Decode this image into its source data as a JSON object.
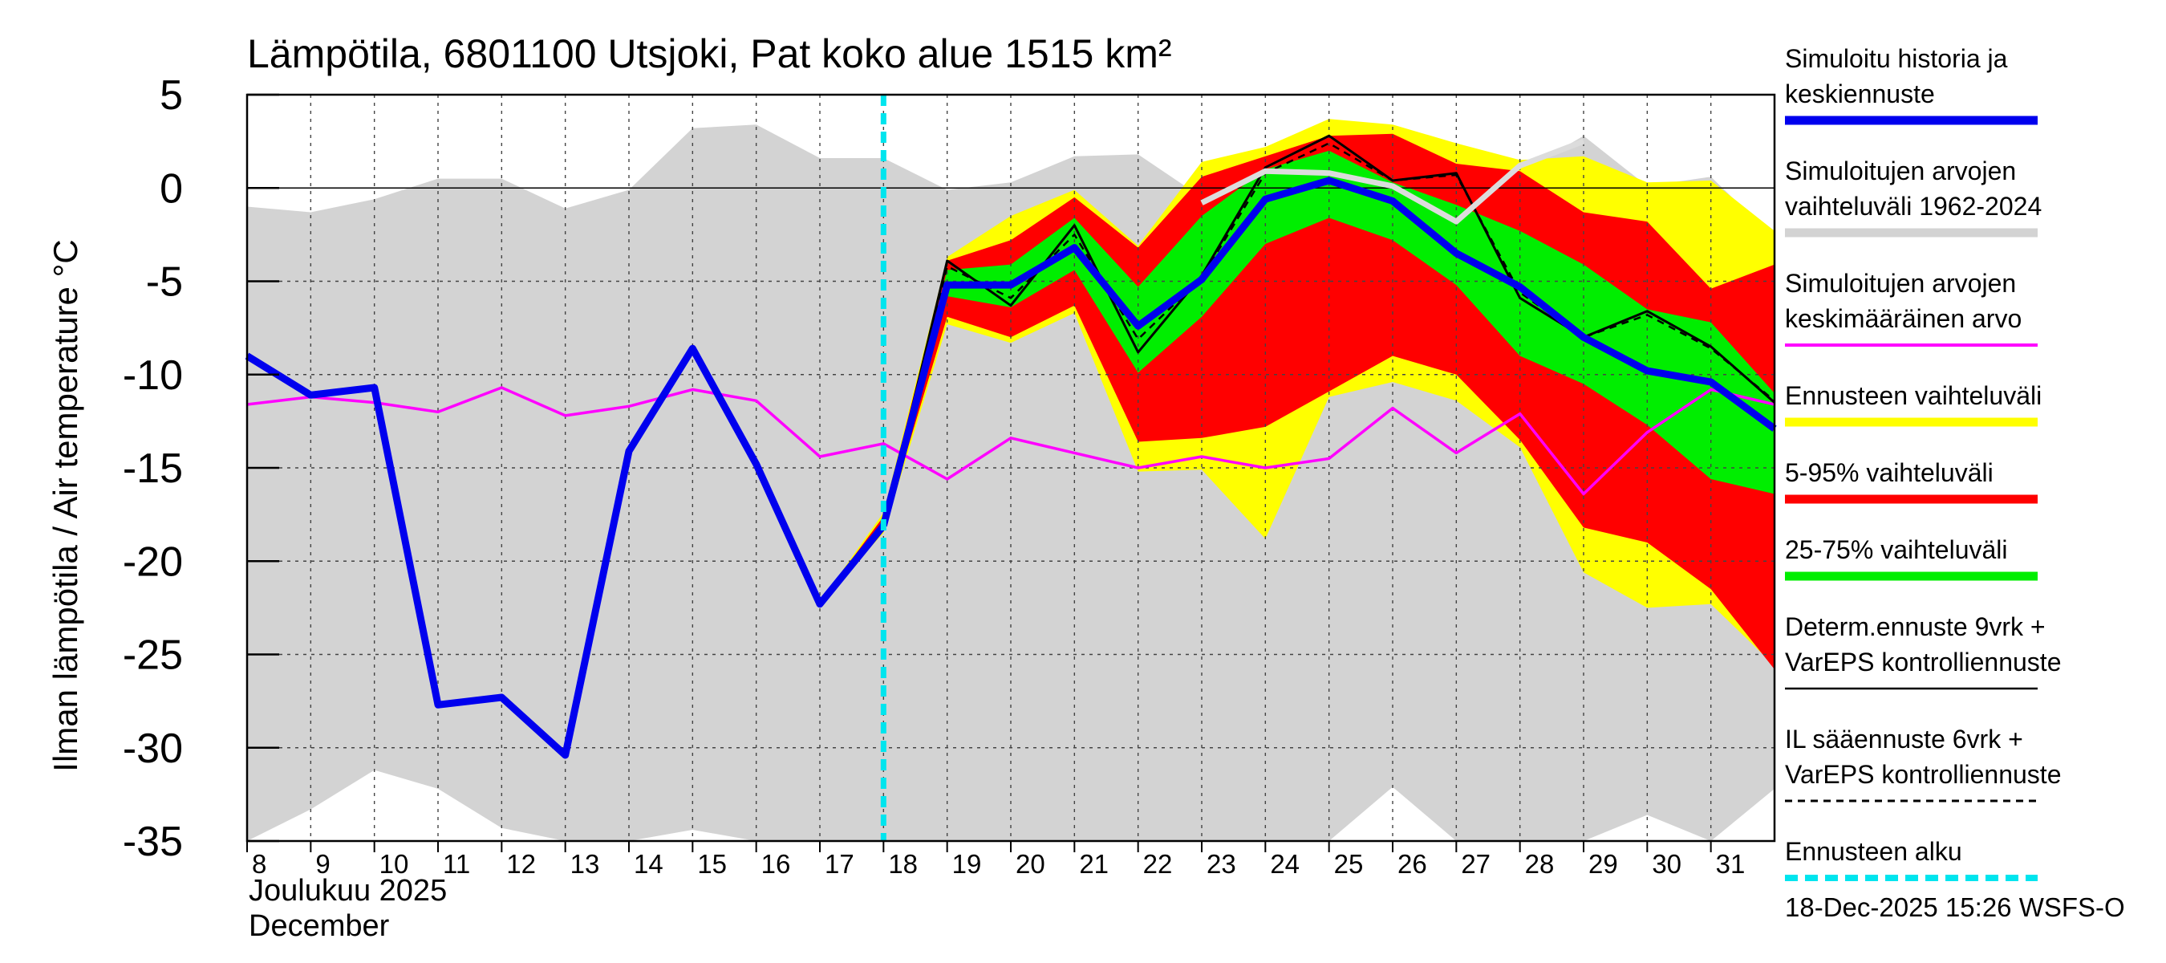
{
  "chart_data": {
    "type": "line",
    "title": "Lämpötila, 6801100 Utsjoki, Pat koko alue 1515 km²",
    "ylabel": "Ilman lämpötila / Air temperature   °C",
    "ylim": [
      -35,
      5
    ],
    "yticks": [
      5,
      0,
      -5,
      -10,
      -15,
      -20,
      -25,
      -30,
      -35
    ],
    "ytick_labels": [
      "5",
      "0",
      "-5",
      "-10",
      "-15",
      "-20",
      "-25",
      "-30",
      "-35"
    ],
    "x_days": [
      8,
      9,
      10,
      11,
      12,
      13,
      14,
      15,
      16,
      17,
      18,
      19,
      20,
      21,
      22,
      23,
      24,
      25,
      26,
      27,
      28,
      29,
      30,
      31
    ],
    "xtick_labels": [
      "8",
      "9",
      "10",
      "11",
      "12",
      "13",
      "14",
      "15",
      "16",
      "17",
      "18",
      "19",
      "20",
      "21",
      "22",
      "23",
      "24",
      "25",
      "26",
      "27",
      "28",
      "29",
      "30",
      "31"
    ],
    "xlim": [
      8,
      32
    ],
    "month_label_fi": "Joulukuu  2025",
    "month_label_en": "December",
    "forecast_start_day": 18,
    "footer": "18-Dec-2025 15:26 WSFS-O",
    "series": [
      {
        "name": "Simuloitujen arvojen vaihteluväli 1962-2024",
        "kind": "band",
        "color": "#d3d3d3",
        "x": [
          8,
          9,
          10,
          11,
          12,
          13,
          14,
          15,
          16,
          17,
          18,
          19,
          20,
          21,
          22,
          23,
          24,
          25,
          26,
          27,
          28,
          29,
          30,
          31,
          32
        ],
        "upper": [
          -1,
          -1.3,
          -0.6,
          0.5,
          0.5,
          -1.1,
          -0.1,
          3.2,
          3.4,
          1.6,
          1.6,
          -0.1,
          0.3,
          1.7,
          1.8,
          -0.5,
          1.7,
          2.3,
          0.7,
          0.2,
          0.8,
          2.8,
          0.1,
          0.6,
          -2.7
        ],
        "lower": [
          -35,
          -33.3,
          -31.2,
          -32.2,
          -34.3,
          -35,
          -35,
          -34.4,
          -35,
          -35,
          -35,
          -35,
          -35,
          -35,
          -35,
          -35,
          -35,
          -35,
          -32.1,
          -35,
          -35,
          -35,
          -33.6,
          -35,
          -32.2
        ]
      },
      {
        "name": "Ennusteen vaihteluväli",
        "kind": "band",
        "color": "#ffff00",
        "x": [
          17,
          18,
          19,
          20,
          21,
          22,
          23,
          24,
          25,
          26,
          27,
          28,
          29,
          30,
          31,
          32
        ],
        "upper": [
          -22.2,
          -17.4,
          -3.7,
          -1.5,
          -0.1,
          -3.1,
          1.4,
          2.2,
          3.7,
          3.4,
          2.4,
          1.5,
          1.7,
          0.3,
          0.4,
          -2.3
        ],
        "lower": [
          -22.2,
          -18.5,
          -7.3,
          -8.3,
          -6.7,
          -15.2,
          -15.1,
          -18.8,
          -11.2,
          -10.4,
          -11.4,
          -13.9,
          -20.6,
          -22.5,
          -22.3,
          -25.6
        ]
      },
      {
        "name": "5-95% vaihteluväli",
        "kind": "band",
        "color": "#ff0000",
        "x": [
          17,
          18,
          19,
          20,
          21,
          22,
          23,
          24,
          25,
          26,
          27,
          28,
          29,
          30,
          31,
          32
        ],
        "upper": [
          -22.2,
          -17.6,
          -3.9,
          -2.8,
          -0.5,
          -3.2,
          0.6,
          1.7,
          2.8,
          2.9,
          1.3,
          0.9,
          -1.3,
          -1.8,
          -5.4,
          -4.1
        ],
        "lower": [
          -22.2,
          -18.3,
          -6.9,
          -8.0,
          -6.3,
          -13.6,
          -13.4,
          -12.8,
          -10.9,
          -9.0,
          -10.0,
          -13.5,
          -18.2,
          -19.0,
          -21.5,
          -25.8
        ]
      },
      {
        "name": "25-75% vaihteluväli",
        "kind": "band",
        "color": "#00ee00",
        "x": [
          17,
          18,
          19,
          20,
          21,
          22,
          23,
          24,
          25,
          26,
          27,
          28,
          29,
          30,
          31,
          32
        ],
        "upper": [
          -22.2,
          -17.8,
          -4.4,
          -4.1,
          -1.6,
          -5.3,
          -1.5,
          1.0,
          2.0,
          0.3,
          -0.9,
          -2.3,
          -4.1,
          -6.5,
          -7.2,
          -11.0
        ],
        "lower": [
          -22.2,
          -18.1,
          -5.8,
          -6.4,
          -4.4,
          -9.9,
          -6.9,
          -3.0,
          -1.6,
          -2.8,
          -5.2,
          -9.0,
          -10.5,
          -12.7,
          -15.6,
          -16.4
        ]
      },
      {
        "name": "Simuloitujen arvojen keskimääräinen arvo",
        "kind": "line",
        "color": "#ff00ff",
        "x": [
          8,
          9,
          10,
          11,
          12,
          13,
          14,
          15,
          16,
          17,
          18,
          19,
          20,
          21,
          22,
          23,
          24,
          25,
          26,
          27,
          28,
          29,
          30,
          31,
          32
        ],
        "values": [
          -11.6,
          -11.2,
          -11.5,
          -12.0,
          -10.7,
          -12.2,
          -11.7,
          -10.8,
          -11.4,
          -14.4,
          -13.7,
          -15.6,
          -13.4,
          -14.2,
          -15.0,
          -14.4,
          -15.0,
          -14.5,
          -11.8,
          -14.2,
          -12.1,
          -16.4,
          -13.1,
          -10.8,
          -11.6
        ]
      },
      {
        "name": "Determ.ennuste 9vrk + VarEPS kontrolliennuste",
        "kind": "line",
        "color": "#000000",
        "x": [
          17,
          18,
          19,
          20,
          21,
          22,
          23,
          24,
          25,
          26,
          27,
          28,
          29,
          30,
          31,
          32
        ],
        "values": [
          -22.3,
          -18.2,
          -3.9,
          -6.3,
          -2.0,
          -8.8,
          -4.7,
          1.1,
          2.8,
          0.4,
          0.8,
          -5.9,
          -8.0,
          -6.6,
          -8.5,
          -11.5
        ]
      },
      {
        "name": "IL sääennuste 6vrk + VarEPS kontrolliennuste",
        "kind": "dashed",
        "color": "#000000",
        "x": [
          17,
          18,
          19,
          20,
          21,
          22,
          23,
          24,
          25,
          26,
          27,
          28,
          29,
          30,
          31,
          32
        ],
        "values": [
          -22.3,
          -18.2,
          -4.2,
          -5.9,
          -2.5,
          -8.1,
          -4.8,
          0.8,
          2.4,
          0.4,
          0.7,
          -5.6,
          -8.0,
          -6.8,
          -8.6,
          -11.4
        ]
      },
      {
        "name": "Simuloitu historia ja keskiennuste (history)",
        "kind": "line",
        "color": "#0000ee",
        "x": [
          8,
          9,
          10,
          11,
          12,
          13,
          14,
          15,
          16,
          17,
          18
        ],
        "values": [
          -9.0,
          -11.1,
          -10.7,
          -27.7,
          -27.3,
          -30.4,
          -14.1,
          -8.6,
          -14.8,
          -22.3,
          -18.1
        ]
      },
      {
        "name": "Simuloitu historia ja keskiennuste (forecast mean)",
        "kind": "line",
        "color": "#0000ee",
        "x": [
          18,
          19,
          20,
          21,
          22,
          23,
          24,
          25,
          26,
          27,
          28,
          29,
          30,
          31,
          32
        ],
        "values": [
          -18.1,
          -5.2,
          -5.2,
          -3.2,
          -7.4,
          -4.9,
          -0.6,
          0.4,
          -0.7,
          -3.5,
          -5.3,
          -8.0,
          -9.8,
          -10.4,
          -12.9
        ]
      },
      {
        "name": "Simuloitu historia ja keskiennuste (seasonal mean, light)",
        "kind": "line",
        "color": "#dcdcdc",
        "x": [
          23,
          24,
          25,
          26,
          27,
          28,
          29
        ],
        "values": [
          -0.8,
          0.9,
          0.8,
          0.1,
          -1.8,
          1.2,
          2.5
        ]
      }
    ]
  },
  "legend": {
    "items": [
      {
        "lines": [
          "Simuloitu historia ja",
          "keskiennuste"
        ],
        "color": "#0000ee",
        "style": "solid-thick"
      },
      {
        "lines": [
          "Simuloitujen arvojen",
          "vaihteluväli 1962-2024"
        ],
        "color": "#d3d3d3",
        "style": "solid-thick"
      },
      {
        "lines": [
          "Simuloitujen arvojen",
          "keskimääräinen arvo"
        ],
        "color": "#ff00ff",
        "style": "solid-thin"
      },
      {
        "lines": [
          "Ennusteen vaihteluväli"
        ],
        "color": "#ffff00",
        "style": "solid-thick"
      },
      {
        "lines": [
          "5-95% vaihteluväli"
        ],
        "color": "#ff0000",
        "style": "solid-thick"
      },
      {
        "lines": [
          "25-75% vaihteluväli"
        ],
        "color": "#00ee00",
        "style": "solid-thick"
      },
      {
        "lines": [
          "Determ.ennuste 9vrk +",
          "VarEPS kontrolliennuste"
        ],
        "color": "#000000",
        "style": "solid-hair"
      },
      {
        "lines": [
          "IL sääennuste 6vrk  +",
          "VarEPS kontrolliennuste"
        ],
        "color": "#000000",
        "style": "dashed"
      },
      {
        "lines": [
          "Ennusteen alku"
        ],
        "color": "#00e5ee",
        "style": "dashed-thick"
      }
    ]
  }
}
